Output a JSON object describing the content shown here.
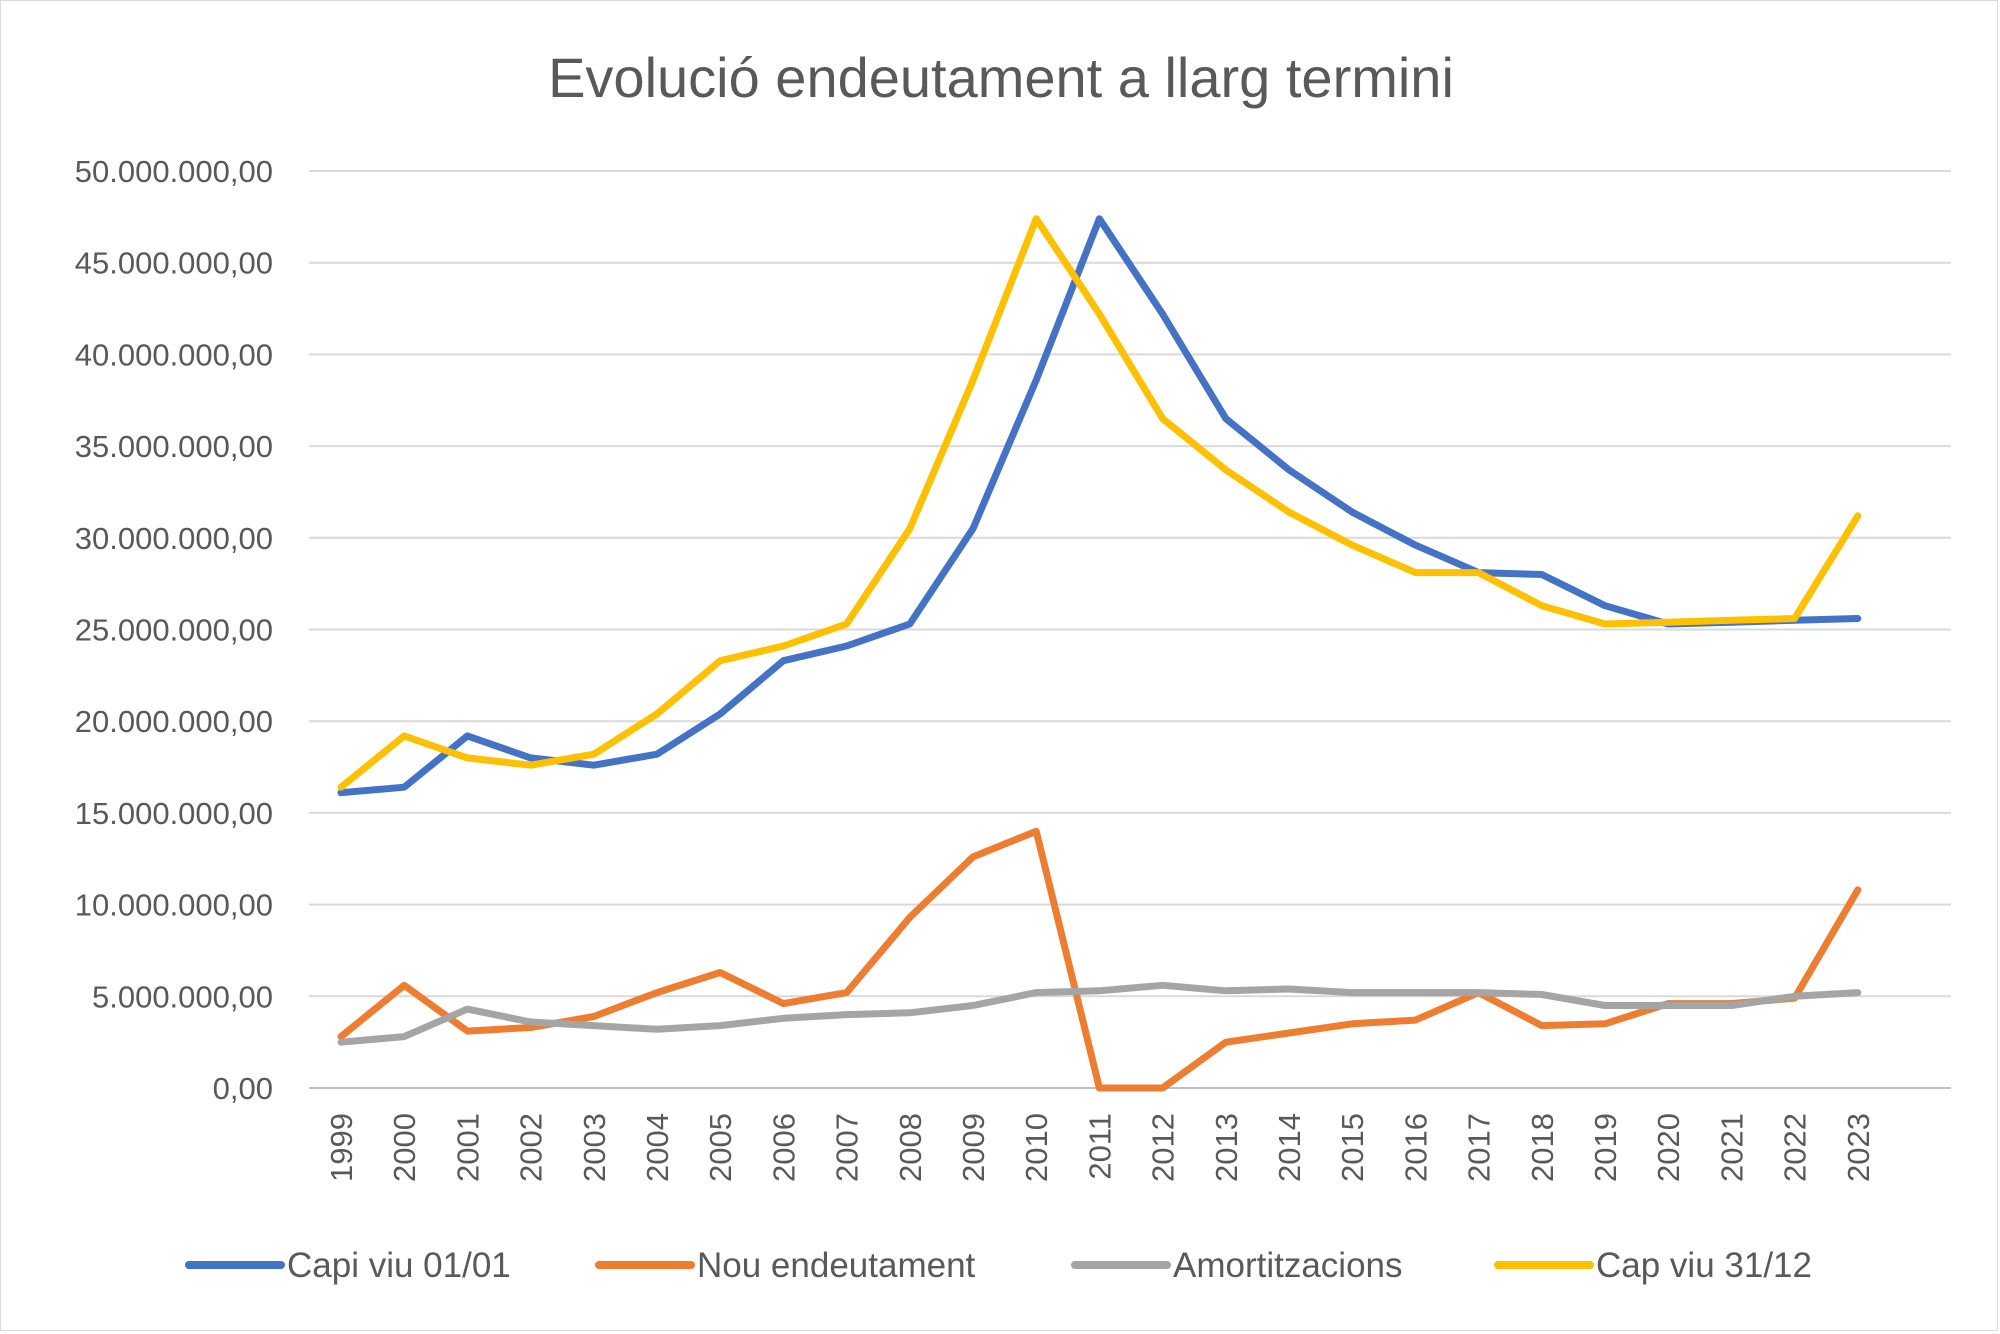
{
  "chart_data": {
    "type": "line",
    "title": "Evolució endeutament a llarg termini",
    "xlabel": "",
    "ylabel": "",
    "ylim": [
      0,
      50000000
    ],
    "yticks": [
      0,
      5000000,
      10000000,
      15000000,
      20000000,
      25000000,
      30000000,
      35000000,
      40000000,
      45000000,
      50000000
    ],
    "ytick_labels": [
      "0,00",
      "5.000.000,00",
      "10.000.000,00",
      "15.000.000,00",
      "20.000.000,00",
      "25.000.000,00",
      "30.000.000,00",
      "35.000.000,00",
      "40.000.000,00",
      "45.000.000,00",
      "50.000.000,00"
    ],
    "grid": true,
    "legend_position": "bottom",
    "categories": [
      "1999",
      "2000",
      "2001",
      "2002",
      "2003",
      "2004",
      "2005",
      "2006",
      "2007",
      "2008",
      "2009",
      "2010",
      "2011",
      "2012",
      "2013",
      "2014",
      "2015",
      "2016",
      "2017",
      "2018",
      "2019",
      "2020",
      "2021",
      "2022",
      "2023"
    ],
    "series": [
      {
        "name": "Capi viu 01/01",
        "color": "#4472C4",
        "values": [
          16100000,
          16400000,
          19200000,
          18000000,
          17600000,
          18200000,
          20400000,
          23300000,
          24100000,
          25300000,
          30500000,
          38600000,
          47400000,
          42200000,
          36500000,
          33700000,
          31400000,
          29600000,
          28100000,
          28000000,
          26300000,
          25300000,
          25400000,
          25500000,
          25600000
        ]
      },
      {
        "name": "Nou endeutament",
        "color": "#ED7D31",
        "values": [
          2800000,
          5600000,
          3100000,
          3300000,
          3900000,
          5200000,
          6300000,
          4600000,
          5200000,
          9300000,
          12600000,
          14000000,
          0,
          0,
          2500000,
          3000000,
          3500000,
          3700000,
          5200000,
          3400000,
          3500000,
          4600000,
          4600000,
          4900000,
          10800000
        ]
      },
      {
        "name": "Amortitzacions",
        "color": "#A5A5A5",
        "values": [
          2500000,
          2800000,
          4300000,
          3600000,
          3400000,
          3200000,
          3400000,
          3800000,
          4000000,
          4100000,
          4500000,
          5200000,
          5300000,
          5600000,
          5300000,
          5400000,
          5200000,
          5200000,
          5200000,
          5100000,
          4500000,
          4500000,
          4500000,
          5000000,
          5200000
        ]
      },
      {
        "name": "Cap viu 31/12",
        "color": "#FFC000",
        "values": [
          16400000,
          19200000,
          18000000,
          17600000,
          18200000,
          20400000,
          23300000,
          24100000,
          25300000,
          30500000,
          38600000,
          47400000,
          42200000,
          36500000,
          33700000,
          31400000,
          29600000,
          28100000,
          28100000,
          26300000,
          25300000,
          25400000,
          25500000,
          25600000,
          31200000
        ]
      }
    ]
  }
}
